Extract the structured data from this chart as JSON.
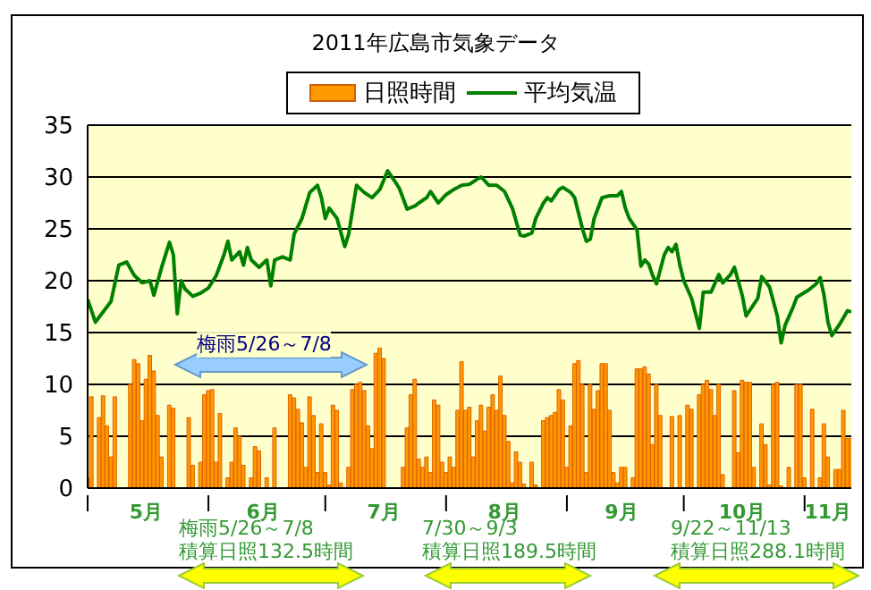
{
  "chart_data": {
    "type": "bar",
    "title": "2011年広島市気象データ",
    "legend": "top",
    "grid": "y",
    "ylim": [
      0,
      35
    ],
    "yticks": [
      0,
      5,
      10,
      15,
      20,
      25,
      30,
      35
    ],
    "xlim": [
      "2011-05-01",
      "2011-11-13"
    ],
    "xticks": [
      {
        "value": "2011-05-01",
        "label": null
      },
      {
        "value": "2011-05-16",
        "label": "5月"
      },
      {
        "value": "2011-06-01",
        "label": null
      },
      {
        "value": "2011-06-15",
        "label": "6月"
      },
      {
        "value": "2011-07-01",
        "label": null
      },
      {
        "value": "2011-07-16",
        "label": "7月"
      },
      {
        "value": "2011-08-01",
        "label": null
      },
      {
        "value": "2011-08-16",
        "label": "8月"
      },
      {
        "value": "2011-09-01",
        "label": null
      },
      {
        "value": "2011-09-15",
        "label": "9月"
      },
      {
        "value": "2011-10-01",
        "label": null
      },
      {
        "value": "2011-10-16",
        "label": "10月"
      },
      {
        "value": "2011-11-01",
        "label": null
      },
      {
        "value": "2011-11-07",
        "label": "11月"
      }
    ],
    "annotations": [
      "梅雨5/26～7/8",
      "梅雨5/26～7/8\n積算日照132.5時間",
      "7/30～9/3\n積算日照189.5時間",
      "9/22～11/13\n積算日照288.1時間"
    ],
    "x": [
      "2011-05-01",
      "2011-05-02",
      "2011-05-03",
      "2011-05-04",
      "2011-05-05",
      "2011-05-06",
      "2011-05-07",
      "2011-05-08",
      "2011-05-09",
      "2011-05-10",
      "2011-05-11",
      "2011-05-12",
      "2011-05-13",
      "2011-05-14",
      "2011-05-15",
      "2011-05-16",
      "2011-05-17",
      "2011-05-18",
      "2011-05-19",
      "2011-05-20",
      "2011-05-21",
      "2011-05-22",
      "2011-05-23",
      "2011-05-24",
      "2011-05-25",
      "2011-05-26",
      "2011-05-27",
      "2011-05-28",
      "2011-05-29",
      "2011-05-30",
      "2011-05-31",
      "2011-06-01",
      "2011-06-02",
      "2011-06-03",
      "2011-06-04",
      "2011-06-05",
      "2011-06-06",
      "2011-06-07",
      "2011-06-08",
      "2011-06-09",
      "2011-06-10",
      "2011-06-11",
      "2011-06-12",
      "2011-06-13",
      "2011-06-14",
      "2011-06-15",
      "2011-06-16",
      "2011-06-17",
      "2011-06-18",
      "2011-06-19",
      "2011-06-20",
      "2011-06-21",
      "2011-06-22",
      "2011-06-23",
      "2011-06-24",
      "2011-06-25",
      "2011-06-26",
      "2011-06-27",
      "2011-06-28",
      "2011-06-29",
      "2011-06-30",
      "2011-07-01",
      "2011-07-02",
      "2011-07-03",
      "2011-07-04",
      "2011-07-05",
      "2011-07-06",
      "2011-07-07",
      "2011-07-08",
      "2011-07-09",
      "2011-07-10",
      "2011-07-11",
      "2011-07-12",
      "2011-07-13",
      "2011-07-14",
      "2011-07-15",
      "2011-07-16",
      "2011-07-17",
      "2011-07-18",
      "2011-07-19",
      "2011-07-20",
      "2011-07-21",
      "2011-07-22",
      "2011-07-23",
      "2011-07-24",
      "2011-07-25",
      "2011-07-26",
      "2011-07-27",
      "2011-07-28",
      "2011-07-29",
      "2011-07-30",
      "2011-07-31",
      "2011-08-01",
      "2011-08-02",
      "2011-08-03",
      "2011-08-04",
      "2011-08-05",
      "2011-08-06",
      "2011-08-07",
      "2011-08-08",
      "2011-08-09",
      "2011-08-10",
      "2011-08-11",
      "2011-08-12",
      "2011-08-13",
      "2011-08-14",
      "2011-08-15",
      "2011-08-16",
      "2011-08-17",
      "2011-08-18",
      "2011-08-19",
      "2011-08-20",
      "2011-08-21",
      "2011-08-22",
      "2011-08-23",
      "2011-08-24",
      "2011-08-25",
      "2011-08-26",
      "2011-08-27",
      "2011-08-28",
      "2011-08-29",
      "2011-08-30",
      "2011-08-31",
      "2011-09-01",
      "2011-09-02",
      "2011-09-03",
      "2011-09-04",
      "2011-09-05",
      "2011-09-06",
      "2011-09-07",
      "2011-09-08",
      "2011-09-09",
      "2011-09-10",
      "2011-09-11",
      "2011-09-12",
      "2011-09-13",
      "2011-09-14",
      "2011-09-15",
      "2011-09-16",
      "2011-09-17",
      "2011-09-18",
      "2011-09-19",
      "2011-09-20",
      "2011-09-21",
      "2011-09-22",
      "2011-09-23",
      "2011-09-24",
      "2011-09-25",
      "2011-09-26",
      "2011-09-27",
      "2011-09-28",
      "2011-09-29",
      "2011-09-30",
      "2011-10-01",
      "2011-10-02",
      "2011-10-03",
      "2011-10-04",
      "2011-10-05",
      "2011-10-06",
      "2011-10-07",
      "2011-10-08",
      "2011-10-09",
      "2011-10-10",
      "2011-10-11",
      "2011-10-12",
      "2011-10-13",
      "2011-10-14",
      "2011-10-15",
      "2011-10-16",
      "2011-10-17",
      "2011-10-18",
      "2011-10-19",
      "2011-10-20",
      "2011-10-21",
      "2011-10-22",
      "2011-10-23",
      "2011-10-24",
      "2011-10-25",
      "2011-10-26",
      "2011-10-27",
      "2011-10-28",
      "2011-10-29",
      "2011-10-30",
      "2011-10-31",
      "2011-11-01",
      "2011-11-02",
      "2011-11-03",
      "2011-11-04",
      "2011-11-05",
      "2011-11-06",
      "2011-11-07",
      "2011-11-08",
      "2011-11-09",
      "2011-11-10",
      "2011-11-11",
      "2011-11-12",
      "2011-11-13"
    ],
    "series": [
      {
        "name": "日照時間",
        "color": "#ff9900",
        "values": [
          1,
          8.8,
          0,
          6.8,
          8.9,
          6,
          3,
          8.8,
          0,
          0,
          0,
          10,
          12.4,
          12,
          6.5,
          10.5,
          12.8,
          11.3,
          7,
          3,
          0,
          8,
          7.7,
          0,
          0,
          0,
          6.8,
          2.2,
          0,
          2.5,
          9,
          9.4,
          9.5,
          2.5,
          7.2,
          0,
          1,
          2.5,
          5.8,
          5,
          2.2,
          0,
          1,
          4,
          3.6,
          0,
          1,
          0,
          5.8,
          0,
          0,
          0,
          9,
          8.7,
          7.6,
          6.3,
          2,
          8.8,
          7,
          1.5,
          6.2,
          1.5,
          0.3,
          8,
          7.5,
          0.5,
          0,
          2,
          9.5,
          10,
          10.2,
          9.4,
          6,
          3.8,
          13,
          13.5,
          12.5,
          0,
          0,
          0,
          0,
          2,
          5.8,
          9,
          10.5,
          2.8,
          2,
          3,
          1.5,
          8.5,
          8,
          2.5,
          1.5,
          3,
          2,
          7.5,
          12.2,
          7.5,
          7.8,
          3,
          6.5,
          8,
          5.5,
          7.8,
          9,
          7.5,
          10.8,
          7,
          4.5,
          0.5,
          3.5,
          2.5,
          0.4,
          0,
          2.5,
          0.3,
          0,
          6.5,
          6.8,
          7,
          7.3,
          9.5,
          8.5,
          2,
          6,
          12,
          12.3,
          10,
          1.5,
          10,
          7.6,
          9.4,
          12,
          12,
          7.5,
          1.5,
          0.5,
          2,
          2,
          0,
          1,
          11.5,
          11.5,
          11.7,
          11,
          4.2,
          10,
          7,
          0,
          0,
          6.9,
          0,
          7,
          0,
          8,
          7.6,
          0,
          9,
          10,
          10.4,
          9.5,
          7,
          10,
          1.3,
          0,
          0,
          9.4,
          3.4,
          10.4,
          10.2,
          10.2,
          2,
          0,
          6.2,
          4.2,
          0.3,
          10,
          10.2,
          0.2,
          0,
          2,
          0,
          10,
          10,
          1,
          0,
          7.6,
          0,
          1,
          6.2,
          3,
          0,
          1.8,
          1.8,
          7.5,
          4.8,
          4.8
        ]
      },
      {
        "name": "平均気温",
        "type": "line",
        "color": "#008000",
        "x": [
          "2011-05-01",
          "2011-05-03",
          "2011-05-05",
          "2011-05-07",
          "2011-05-09",
          "2011-05-11",
          "2011-05-13",
          "2011-05-15",
          "2011-05-17",
          "2011-05-18",
          "2011-05-20",
          "2011-05-22",
          "2011-05-23",
          "2011-05-24",
          "2011-05-25",
          "2011-05-26",
          "2011-05-28",
          "2011-05-30",
          "2011-06-01",
          "2011-06-03",
          "2011-06-05",
          "2011-06-06",
          "2011-06-07",
          "2011-06-09",
          "2011-06-10",
          "2011-06-11",
          "2011-06-12",
          "2011-06-14",
          "2011-06-16",
          "2011-06-17",
          "2011-06-18",
          "2011-06-20",
          "2011-06-22",
          "2011-06-23",
          "2011-06-25",
          "2011-06-27",
          "2011-06-29",
          "2011-06-30",
          "2011-07-01",
          "2011-07-02",
          "2011-07-04",
          "2011-07-06",
          "2011-07-07",
          "2011-07-09",
          "2011-07-11",
          "2011-07-13",
          "2011-07-15",
          "2011-07-17",
          "2011-07-19",
          "2011-07-20",
          "2011-07-22",
          "2011-07-24",
          "2011-07-25",
          "2011-07-27",
          "2011-07-28",
          "2011-07-30",
          "2011-08-01",
          "2011-08-03",
          "2011-08-05",
          "2011-08-07",
          "2011-08-09",
          "2011-08-10",
          "2011-08-12",
          "2011-08-14",
          "2011-08-16",
          "2011-08-18",
          "2011-08-20",
          "2011-08-21",
          "2011-08-23",
          "2011-08-24",
          "2011-08-26",
          "2011-08-27",
          "2011-08-28",
          "2011-08-30",
          "2011-08-31",
          "2011-09-02",
          "2011-09-03",
          "2011-09-05",
          "2011-09-06",
          "2011-09-07",
          "2011-09-08",
          "2011-09-10",
          "2011-09-12",
          "2011-09-14",
          "2011-09-15",
          "2011-09-16",
          "2011-09-17",
          "2011-09-19",
          "2011-09-20",
          "2011-09-21",
          "2011-09-22",
          "2011-09-23",
          "2011-09-24",
          "2011-09-26",
          "2011-09-27",
          "2011-09-28",
          "2011-09-29",
          "2011-09-30",
          "2011-10-01",
          "2011-10-03",
          "2011-10-05",
          "2011-10-06",
          "2011-10-08",
          "2011-10-10",
          "2011-10-11",
          "2011-10-13",
          "2011-10-14",
          "2011-10-16",
          "2011-10-17",
          "2011-10-20",
          "2011-10-21",
          "2011-10-23",
          "2011-10-25",
          "2011-10-26",
          "2011-10-27",
          "2011-10-29",
          "2011-10-30",
          "2011-11-02",
          "2011-11-04",
          "2011-11-05",
          "2011-11-06",
          "2011-11-07",
          "2011-11-08",
          "2011-11-10",
          "2011-11-12",
          "2011-11-13"
        ],
        "values": [
          18.2,
          16,
          17,
          18,
          21.5,
          21.8,
          20.5,
          19.8,
          20,
          18.6,
          21.3,
          23.7,
          22.5,
          16.8,
          20,
          19.2,
          18.5,
          18.8,
          19.3,
          20.5,
          22.5,
          23.8,
          22,
          22.8,
          21.5,
          23.2,
          22,
          21.3,
          22,
          19.5,
          22,
          22.3,
          22,
          24.5,
          26,
          28.5,
          29.2,
          28,
          26,
          27,
          26,
          23.3,
          24.5,
          29.2,
          28.5,
          28,
          28.8,
          30.6,
          29.5,
          28.9,
          26.9,
          27.2,
          27.5,
          28,
          28.6,
          27.5,
          28.3,
          28.8,
          29.2,
          29.3,
          29.8,
          30,
          29.2,
          29.2,
          28.6,
          27,
          24.4,
          24.3,
          24.6,
          26,
          27.5,
          28,
          27.7,
          28.8,
          29,
          28.5,
          28,
          25,
          23.8,
          24,
          26,
          28,
          28.2,
          28.2,
          28.6,
          27,
          26,
          24.9,
          21.4,
          22,
          21.6,
          20.5,
          19.7,
          22.5,
          23.2,
          22.8,
          23.5,
          21.5,
          20,
          18.3,
          15.4,
          18.9,
          18.9,
          20.6,
          19.8,
          20.6,
          21.3,
          18.6,
          16.6,
          18.3,
          20.4,
          19.4,
          16.6,
          14,
          15.7,
          17.4,
          18.4,
          19.1,
          19.7,
          20.3,
          18.6,
          16,
          14.7,
          15.8,
          17.1,
          17
        ]
      }
    ]
  }
}
